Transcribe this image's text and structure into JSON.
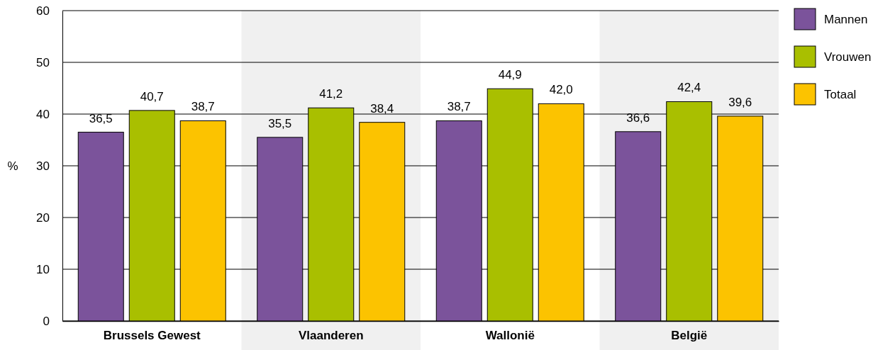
{
  "chart_data": {
    "type": "bar",
    "ylabel": "%",
    "categories": [
      "Brussels Gewest",
      "Vlaanderen",
      "Wallonië",
      "België"
    ],
    "series": [
      {
        "name": "Mannen",
        "color": "#7b539b",
        "values": [
          36.5,
          35.5,
          38.7,
          36.6
        ],
        "value_labels": [
          "36,5",
          "35,5",
          "38,7",
          "36,6"
        ]
      },
      {
        "name": "Vrouwen",
        "color": "#a9bf00",
        "values": [
          40.7,
          41.2,
          44.9,
          42.4
        ],
        "value_labels": [
          "40,7",
          "41,2",
          "44,9",
          "42,4"
        ]
      },
      {
        "name": "Totaal",
        "color": "#fcc300",
        "values": [
          38.7,
          38.4,
          42.0,
          39.6
        ],
        "value_labels": [
          "38,7",
          "38,4",
          "42,0",
          "39,6"
        ]
      }
    ],
    "ylim": [
      0,
      60
    ],
    "yticks": [
      0,
      10,
      20,
      30,
      40,
      50,
      60
    ],
    "grid": "y",
    "legend": "top right"
  }
}
